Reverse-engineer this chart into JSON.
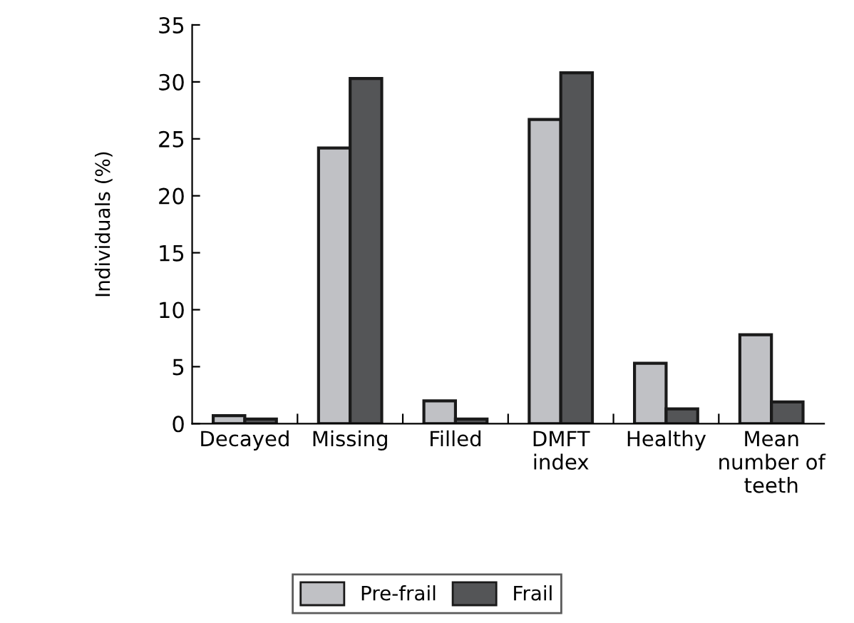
{
  "chart_data": {
    "type": "bar",
    "ylabel": "Individuals (%)",
    "categories": [
      "Decayed",
      "Missing",
      "Filled",
      "DMFT\nindex",
      "Healthy",
      "Mean\nnumber of\nteeth"
    ],
    "series": [
      {
        "name": "Pre-frail",
        "color": "#c0c1c5",
        "values": [
          0.7,
          24.2,
          2.0,
          26.7,
          5.3,
          7.8
        ]
      },
      {
        "name": "Frail",
        "color": "#545557",
        "values": [
          0.4,
          30.3,
          0.4,
          30.8,
          1.3,
          1.9
        ]
      }
    ],
    "ylim": [
      0,
      35
    ],
    "yticks": [
      0,
      5,
      10,
      15,
      20,
      25,
      30,
      35
    ],
    "grid": false,
    "legend": "bottom"
  }
}
